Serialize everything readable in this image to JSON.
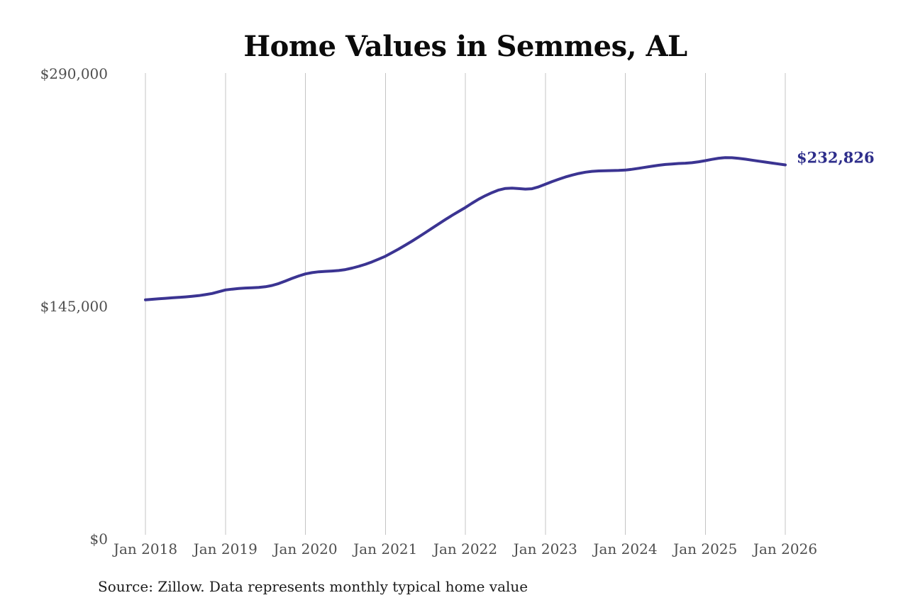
{
  "chart": {
    "title": "Home Values in Semmes, AL",
    "end_value_label": "$232,826",
    "source_note": "Source: Zillow. Data represents monthly typical home value"
  },
  "style": {
    "colors": {
      "line": "#3b3492",
      "grid": "#c4c4c4",
      "axis_text": "#4f4f4f",
      "title": "#0b0b0b",
      "source": "#1c1c1c",
      "end_label": "#2e2e8b",
      "background": "#ffffff"
    }
  },
  "chart_data": {
    "type": "line",
    "title": "Home Values in Semmes, AL",
    "xlabel": "",
    "ylabel": "",
    "frequency": "monthly",
    "x_start": "2018-01",
    "x_end": "2026-01",
    "x_tick_labels": [
      "Jan 2018",
      "Jan 2019",
      "Jan 2020",
      "Jan 2021",
      "Jan 2022",
      "Jan 2023",
      "Jan 2024",
      "Jan 2025",
      "Jan 2026"
    ],
    "y_tick_labels": [
      "$0",
      "$145,000",
      "$290,000"
    ],
    "y_tick_values": [
      0,
      145000,
      290000
    ],
    "ylim": [
      0,
      290000
    ],
    "grid": "vertical-only",
    "legend": "none",
    "last_point_value": 232826,
    "last_point_label": "$232,826",
    "series": [
      {
        "name": "Monthly typical home value",
        "color": "#3b3492",
        "values": [
          148900,
          149200,
          149500,
          149800,
          150100,
          150400,
          150700,
          151100,
          151500,
          152100,
          152800,
          153900,
          155000,
          155500,
          155900,
          156200,
          156400,
          156600,
          157000,
          157800,
          159000,
          160600,
          162200,
          163700,
          165000,
          165800,
          166300,
          166600,
          166800,
          167100,
          167700,
          168600,
          169700,
          171000,
          172500,
          174200,
          176000,
          178200,
          180500,
          182900,
          185400,
          188000,
          190700,
          193400,
          196100,
          198800,
          201400,
          203900,
          206300,
          209000,
          211500,
          213700,
          215600,
          217200,
          218200,
          218400,
          218100,
          217800,
          218000,
          219200,
          220800,
          222400,
          223900,
          225300,
          226500,
          227500,
          228300,
          228800,
          229100,
          229200,
          229300,
          229400,
          229600,
          230100,
          230700,
          231400,
          232000,
          232600,
          233100,
          233400,
          233700,
          233900,
          234200,
          234800,
          235500,
          236300,
          237000,
          237400,
          237300,
          236900,
          236400,
          235800,
          235200,
          234600,
          234000,
          233400,
          232826
        ]
      }
    ]
  }
}
